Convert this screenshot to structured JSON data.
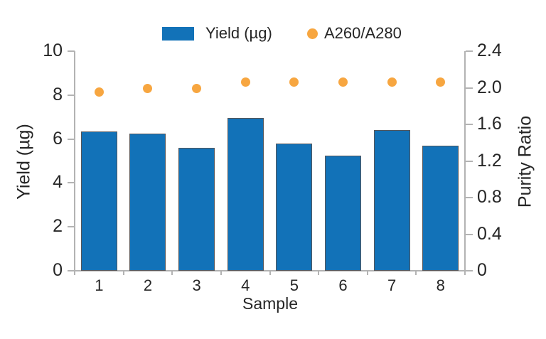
{
  "chart_data": {
    "type": "combo",
    "categories": [
      "1",
      "2",
      "3",
      "4",
      "5",
      "6",
      "7",
      "8"
    ],
    "xlabel": "Sample",
    "series": [
      {
        "name": "Yield (µg)",
        "type": "bar",
        "axis": "left",
        "values": [
          6.35,
          6.25,
          5.6,
          6.95,
          5.8,
          5.25,
          6.4,
          5.7
        ]
      },
      {
        "name": "A260/A280",
        "type": "scatter",
        "axis": "right",
        "values": [
          1.95,
          1.99,
          1.99,
          2.06,
          2.06,
          2.06,
          2.06,
          2.06
        ]
      }
    ],
    "left_axis": {
      "label": "Yield (µg)",
      "min": 0,
      "max": 10,
      "ticks": [
        0,
        2,
        4,
        6,
        8,
        10
      ],
      "tick_labels": [
        "0",
        "2",
        "4",
        "6",
        "8",
        "10"
      ]
    },
    "right_axis": {
      "label": "Purity Ratio",
      "min": 0,
      "max": 2.4,
      "ticks": [
        0,
        0.4,
        0.8,
        1.2,
        1.6,
        2.0,
        2.4
      ],
      "tick_labels": [
        "0",
        "0.4",
        "0.8",
        "1.2",
        "1.6",
        "2.0",
        "2.4"
      ]
    },
    "legend": {
      "position": "top",
      "entries": [
        {
          "label": "Yield (µg)",
          "marker": "square"
        },
        {
          "label": "A260/A280",
          "marker": "dot"
        }
      ]
    },
    "grid": false
  },
  "colors": {
    "bar": "#1272B8",
    "bar_edge": "#55565A",
    "dot": "#F7A640",
    "axis_line": "#B3B3B3",
    "text": "#262626"
  }
}
